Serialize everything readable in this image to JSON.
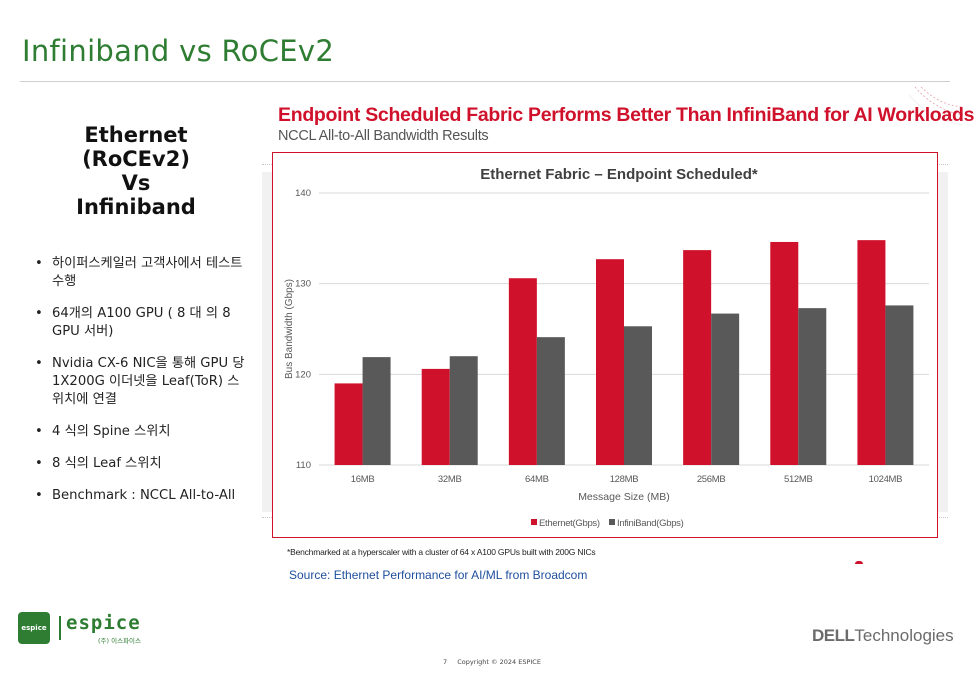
{
  "slide": {
    "title": "Infiniband vs RoCEv2",
    "left_heading": [
      "Ethernet",
      "(RoCEv2)",
      "Vs",
      "Infiniband"
    ],
    "bullets": [
      "하이퍼스케일러 고객사에서 테스트 수행",
      "64개의 A100 GPU ( 8 대 의 8 GPU 서버)",
      "Nvidia CX-6 NIC을 통해 GPU 당 1X200G 이더넷을 Leaf(ToR) 스위치에 연결",
      "4 식의 Spine 스위치",
      "8 식의 Leaf 스위치",
      "Benchmark : NCCL All-to-All"
    ],
    "headline": "Endpoint Scheduled Fabric Performs Better Than InfiniBand for AI Workloads",
    "subheadline": "NCCL All-to-All Bandwidth Results",
    "footnote": "*Benchmarked at a hyperscaler with a cluster of 64 x A100 GPUs built with 200G NICs",
    "source": "Source:  Ethernet Performance for AI/ML from Broadcom",
    "logo_badge": "espice",
    "logo_word": "espice",
    "logo_sub": "(주) 이스파이스",
    "dell_brand": "DELL",
    "dell_suffix": "Technologies",
    "page_number": "7",
    "copyright": "Copyright © 2024 ESPICE"
  },
  "colors": {
    "ethernet": "#d0112b",
    "infiniband": "#595959",
    "grid": "#d9d9d9",
    "axis_text": "#595959"
  },
  "chart_data": {
    "type": "bar",
    "title": "Ethernet Fabric – Endpoint Scheduled*",
    "xlabel": "Message Size (MB)",
    "ylabel": "Bus Bandwidth (Gbps)",
    "ylim": [
      110,
      140
    ],
    "yticks": [
      110,
      120,
      130,
      140
    ],
    "grid": true,
    "legend_position": "bottom-center",
    "categories": [
      "16MB",
      "32MB",
      "64MB",
      "128MB",
      "256MB",
      "512MB",
      "1024MB"
    ],
    "series": [
      {
        "name": "Ethernet(Gbps)",
        "values": [
          119.0,
          120.6,
          130.6,
          132.7,
          133.7,
          134.6,
          134.8
        ]
      },
      {
        "name": "InfiniBand(Gbps)",
        "values": [
          121.9,
          122.0,
          124.1,
          125.3,
          126.7,
          127.3,
          127.6
        ]
      }
    ]
  }
}
